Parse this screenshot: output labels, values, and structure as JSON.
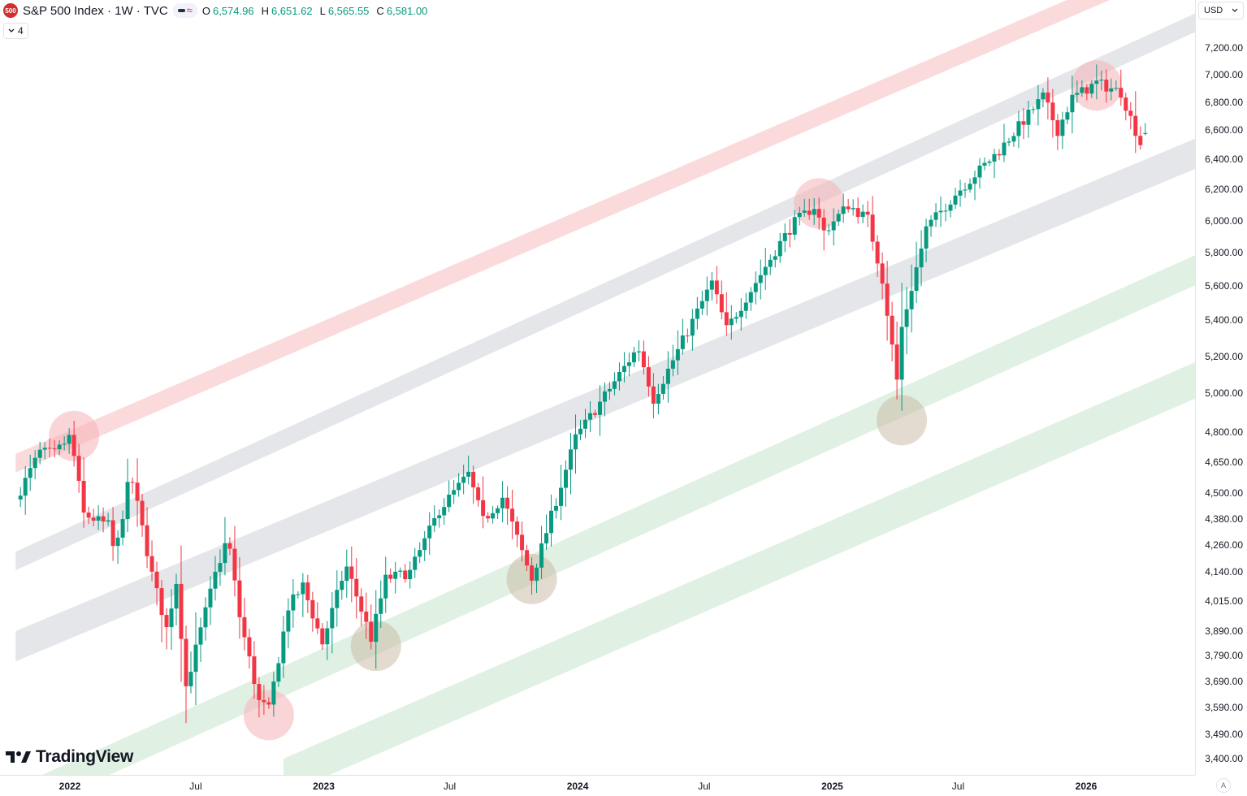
{
  "legend": {
    "symbol_badge": "500",
    "symbol": "S&P 500 Index · 1W · TVC",
    "open_label": "O",
    "open": "6,574.96",
    "high_label": "H",
    "high": "6,651.62",
    "low_label": "L",
    "low": "6,565.55",
    "close_label": "C",
    "close": "6,581.00",
    "collapse_count": "4"
  },
  "toolbar": {
    "currency": "USD",
    "auto_scale": "A"
  },
  "watermark": "TradingView",
  "colors": {
    "up": "#089981",
    "down": "#f23645",
    "band_red": "#f9c6ca",
    "band_gray": "#dcdde2",
    "band_green": "#cfead6",
    "circle_red": "#f5b3b8",
    "circle_tan": "#c8b8a0"
  },
  "chart_data": {
    "type": "candlestick",
    "title": "S&P 500 Index · 1W · TVC",
    "interval": "1W",
    "scale": "log",
    "ylim": [
      3400,
      7450
    ],
    "y_ticks": [
      "3,400.00",
      "3,490.00",
      "3,590.00",
      "3,690.00",
      "3,790.00",
      "3,890.00",
      "4,015.00",
      "4,140.00",
      "4,260.00",
      "4,380.00",
      "4,500.00",
      "4,650.00",
      "4,800.00",
      "5,000.00",
      "5,200.00",
      "5,400.00",
      "5,600.00",
      "5,800.00",
      "6,000.00",
      "6,200.00",
      "6,400.00",
      "6,600.00",
      "6,800.00",
      "7,000.00",
      "7,200.00"
    ],
    "x_ticks": [
      {
        "label": "2022",
        "year": true
      },
      {
        "label": "Jul",
        "year": false
      },
      {
        "label": "2023",
        "year": true
      },
      {
        "label": "Jul",
        "year": false
      },
      {
        "label": "2024",
        "year": true
      },
      {
        "label": "Jul",
        "year": false
      },
      {
        "label": "2025",
        "year": true
      },
      {
        "label": "Jul",
        "year": false
      },
      {
        "label": "2026",
        "year": true
      }
    ],
    "channels": [
      {
        "color": "red",
        "start": {
          "date": "2021-10-15",
          "price": 4690
        },
        "end": {
          "date": "2026-03-27",
          "price": 7850
        },
        "thickness_pct": 2.4
      },
      {
        "color": "gray",
        "start": {
          "date": "2021-10-15",
          "price": 4230
        },
        "end": {
          "date": "2026-03-27",
          "price": 7290
        },
        "thickness_pct": 2.4
      },
      {
        "color": "gray",
        "start": {
          "date": "2021-10-15",
          "price": 3890
        },
        "end": {
          "date": "2026-03-27",
          "price": 6400
        },
        "thickness_pct": 3.9
      },
      {
        "color": "green",
        "start": {
          "date": "2021-10-15",
          "price": 3300
        },
        "end": {
          "date": "2026-03-27",
          "price": 5650
        },
        "thickness_pct": 3.9
      },
      {
        "color": "green",
        "start": {
          "date": "2022-11-04",
          "price": 3400
        },
        "end": {
          "date": "2026-03-27",
          "price": 5050
        },
        "thickness_pct": 4.7
      }
    ],
    "highlights": [
      {
        "color": "red",
        "date": "2022-01-07",
        "price": 4780
      },
      {
        "color": "red",
        "date": "2022-10-14",
        "price": 3560
      },
      {
        "color": "tan",
        "date": "2023-03-17",
        "price": 3830
      },
      {
        "color": "tan",
        "date": "2023-10-27",
        "price": 4110
      },
      {
        "color": "red",
        "date": "2024-12-13",
        "price": 6110
      },
      {
        "color": "tan",
        "date": "2025-04-11",
        "price": 4860
      },
      {
        "color": "red",
        "date": "2026-01-16",
        "price": 6920
      }
    ],
    "anchors": [
      {
        "date": "2021-10-15",
        "price": 4470
      },
      {
        "date": "2021-11-19",
        "price": 4700
      },
      {
        "date": "2021-12-10",
        "price": 4690
      },
      {
        "date": "2022-01-02",
        "price": 4780
      },
      {
        "date": "2022-01-21",
        "price": 4400
      },
      {
        "date": "2022-02-25",
        "price": 4350
      },
      {
        "date": "2022-03-07",
        "price": 4210
      },
      {
        "date": "2022-03-29",
        "price": 4600
      },
      {
        "date": "2022-04-29",
        "price": 4130
      },
      {
        "date": "2022-05-20",
        "price": 3900
      },
      {
        "date": "2022-06-03",
        "price": 4100
      },
      {
        "date": "2022-06-17",
        "price": 3670
      },
      {
        "date": "2022-07-29",
        "price": 4130
      },
      {
        "date": "2022-08-16",
        "price": 4300
      },
      {
        "date": "2022-09-02",
        "price": 3950
      },
      {
        "date": "2022-09-30",
        "price": 3610
      },
      {
        "date": "2022-10-14",
        "price": 3580
      },
      {
        "date": "2022-11-11",
        "price": 3990
      },
      {
        "date": "2022-12-02",
        "price": 4080
      },
      {
        "date": "2022-12-30",
        "price": 3840
      },
      {
        "date": "2023-02-02",
        "price": 4170
      },
      {
        "date": "2023-03-10",
        "price": 3860
      },
      {
        "date": "2023-03-31",
        "price": 4110
      },
      {
        "date": "2023-05-05",
        "price": 4140
      },
      {
        "date": "2023-06-16",
        "price": 4420
      },
      {
        "date": "2023-07-28",
        "price": 4590
      },
      {
        "date": "2023-08-18",
        "price": 4370
      },
      {
        "date": "2023-09-15",
        "price": 4480
      },
      {
        "date": "2023-10-27",
        "price": 4110
      },
      {
        "date": "2023-12-29",
        "price": 4770
      },
      {
        "date": "2024-03-28",
        "price": 5250
      },
      {
        "date": "2024-04-19",
        "price": 4970
      },
      {
        "date": "2024-07-12",
        "price": 5620
      },
      {
        "date": "2024-08-02",
        "price": 5350
      },
      {
        "date": "2024-10-18",
        "price": 5860
      },
      {
        "date": "2024-11-08",
        "price": 5990
      },
      {
        "date": "2024-12-06",
        "price": 6090
      },
      {
        "date": "2024-12-20",
        "price": 5930
      },
      {
        "date": "2025-01-24",
        "price": 6100
      },
      {
        "date": "2025-02-21",
        "price": 6010
      },
      {
        "date": "2025-03-14",
        "price": 5640
      },
      {
        "date": "2025-04-04",
        "price": 5070
      },
      {
        "date": "2025-04-11",
        "price": 5360
      },
      {
        "date": "2025-05-16",
        "price": 5950
      },
      {
        "date": "2025-06-27",
        "price": 6170
      },
      {
        "date": "2025-08-29",
        "price": 6460
      },
      {
        "date": "2025-10-31",
        "price": 6840
      },
      {
        "date": "2025-11-21",
        "price": 6600
      },
      {
        "date": "2025-12-12",
        "price": 6830
      },
      {
        "date": "2026-01-16",
        "price": 6940
      },
      {
        "date": "2026-02-20",
        "price": 6870
      },
      {
        "date": "2026-03-20",
        "price": 6510
      },
      {
        "date": "2026-03-27",
        "price": 6581
      }
    ],
    "last": {
      "open": 6574.96,
      "high": 6651.62,
      "low": 6565.55,
      "close": 6581.0
    }
  }
}
